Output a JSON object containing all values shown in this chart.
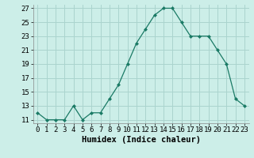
{
  "x": [
    0,
    1,
    2,
    3,
    4,
    5,
    6,
    7,
    8,
    9,
    10,
    11,
    12,
    13,
    14,
    15,
    16,
    17,
    18,
    19,
    20,
    21,
    22,
    23
  ],
  "y": [
    12,
    11,
    11,
    11,
    13,
    11,
    12,
    12,
    14,
    16,
    19,
    22,
    24,
    26,
    27,
    27,
    25,
    23,
    23,
    23,
    21,
    19,
    14,
    13
  ],
  "line_color": "#1a7a65",
  "marker_color": "#1a7a65",
  "bg_color": "#cceee8",
  "grid_color": "#aad4ce",
  "xlabel": "Humidex (Indice chaleur)",
  "xlim": [
    -0.5,
    23.5
  ],
  "ylim": [
    10.5,
    27.5
  ],
  "yticks": [
    11,
    13,
    15,
    17,
    19,
    21,
    23,
    25,
    27
  ],
  "ytick_labels": [
    "11",
    "13",
    "15",
    "17",
    "19",
    "21",
    "23",
    "25",
    "27"
  ],
  "xtick_labels": [
    "0",
    "1",
    "2",
    "3",
    "4",
    "5",
    "6",
    "7",
    "8",
    "9",
    "10",
    "11",
    "12",
    "13",
    "14",
    "15",
    "16",
    "17",
    "18",
    "19",
    "20",
    "21",
    "22",
    "23"
  ],
  "tick_fontsize": 6.5,
  "xlabel_fontsize": 7.5
}
